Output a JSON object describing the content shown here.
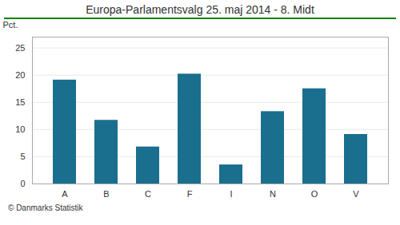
{
  "chart_data": {
    "type": "bar",
    "title": "Europa-Parlamentsvalg 25. maj 2014 - 8. Midt",
    "caption": "© Danmarks Statistik",
    "ylabel": "Pct.",
    "categories": [
      "A",
      "B",
      "C",
      "F",
      "I",
      "N",
      "O",
      "V"
    ],
    "values": [
      19.1,
      11.7,
      6.8,
      20.2,
      3.5,
      13.3,
      17.5,
      9.1
    ],
    "color": "#1a6e8e",
    "ylim": [
      0,
      27
    ],
    "yticks": [
      0,
      5,
      10,
      15,
      20,
      25
    ],
    "grid": true
  }
}
